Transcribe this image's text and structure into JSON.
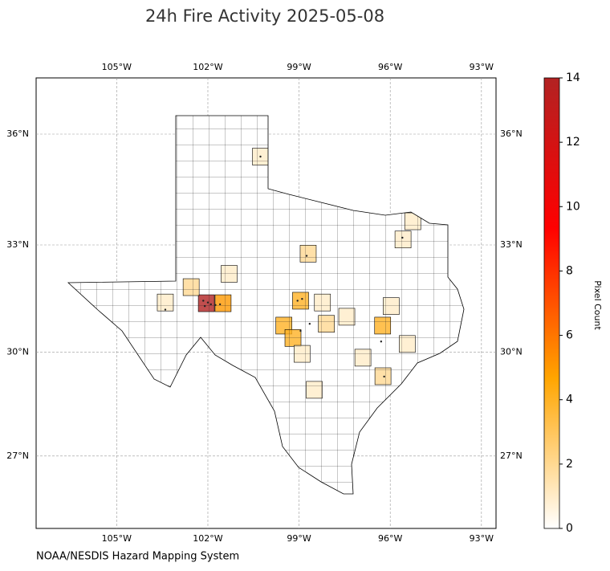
{
  "title": "24h Fire Activity 2025-05-08",
  "source": "NOAA/NESDIS Hazard Mapping System",
  "map": {
    "xlim": [
      -107.65,
      -92.52
    ],
    "ylim": [
      24.86,
      37.48
    ],
    "projection": "mercator",
    "grid": true,
    "xticks": [
      {
        "value": -105,
        "label": "105°W"
      },
      {
        "value": -102,
        "label": "102°W"
      },
      {
        "value": -99,
        "label": "99°W"
      },
      {
        "value": -96,
        "label": "96°W"
      },
      {
        "value": -93,
        "label": "93°W"
      }
    ],
    "yticks": [
      {
        "value": 27,
        "label": "27°N"
      },
      {
        "value": 30,
        "label": "30°N"
      },
      {
        "value": 33,
        "label": "33°N"
      },
      {
        "value": 36,
        "label": "36°N"
      }
    ],
    "counties": {
      "lon": [
        -102.05,
        -101.5,
        -102.55,
        -103.4,
        -101.3,
        -100.27,
        -98.7,
        -98.95,
        -99.5,
        -99.2,
        -96.25,
        -95.26,
        -95.58,
        -95.97,
        -97.43,
        -98.1,
        -98.23,
        -96.24,
        -98.5,
        -96.9,
        -98.9,
        -95.44
      ],
      "lat": [
        31.38,
        31.38,
        31.83,
        31.4,
        32.2,
        35.4,
        32.76,
        31.45,
        30.75,
        30.4,
        30.75,
        33.65,
        33.15,
        31.3,
        31.0,
        30.8,
        31.4,
        29.31,
        28.92,
        29.84,
        29.95,
        30.23
      ],
      "values": [
        14,
        5,
        2,
        1,
        1,
        1,
        2,
        4,
        4,
        4,
        4,
        1,
        1,
        1,
        1,
        2,
        1,
        2,
        1,
        1,
        1,
        1
      ]
    },
    "detections": {
      "lon": [
        -102.15,
        -102.0,
        -101.9,
        -101.75,
        -102.1,
        -101.6,
        -98.75,
        -98.9,
        -99.05,
        -98.95,
        -96.3,
        -95.6,
        -103.4,
        -100.27,
        -96.2,
        -98.65
      ],
      "lat": [
        31.45,
        31.4,
        31.35,
        31.33,
        31.3,
        31.35,
        32.7,
        31.5,
        31.45,
        30.6,
        30.3,
        33.2,
        31.2,
        35.4,
        29.3,
        30.8
      ]
    }
  },
  "colorbar": {
    "label": "Pixel Count",
    "clim": [
      0,
      14
    ],
    "ticks": [
      0,
      2,
      4,
      6,
      8,
      10,
      12,
      14
    ],
    "colors": [
      "#ffffff",
      "#ffa500",
      "#ff0000",
      "#b22222"
    ]
  }
}
